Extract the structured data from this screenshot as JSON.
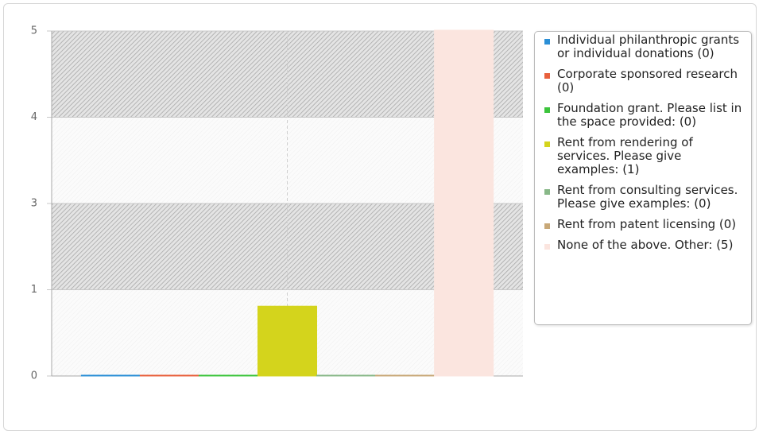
{
  "chart_data": {
    "type": "bar",
    "ylim": [
      0,
      5
    ],
    "yticks": [
      0,
      {
        "value": 1.25,
        "label": "1"
      },
      {
        "value": 2.5,
        "label": "3"
      },
      {
        "value": 3.75,
        "label": "4"
      },
      5
    ],
    "grid": true,
    "legend": "right",
    "series": [
      {
        "name": "Individual philanthropic grants or individual donations (0)",
        "color": "#2b8fd6",
        "values": [
          0
        ]
      },
      {
        "name": "Corporate sponsored research (0)",
        "color": "#e8603c",
        "values": [
          0
        ]
      },
      {
        "name": "Foundation grant. Please list in the space provided: (0)",
        "color": "#3cc43c",
        "values": [
          0
        ]
      },
      {
        "name": "Rent from rendering of services. Please give examples: (1)",
        "color": "#d4d41c",
        "values": [
          1
        ]
      },
      {
        "name": "Rent from consulting services. Please give examples: (0)",
        "color": "#88b888",
        "values": [
          0
        ]
      },
      {
        "name": "Rent from patent licensing (0)",
        "color": "#c8a878",
        "values": [
          0
        ]
      },
      {
        "name": "None of the above. Other: (5)",
        "color": "#fbe5df",
        "values": [
          5
        ]
      }
    ]
  }
}
